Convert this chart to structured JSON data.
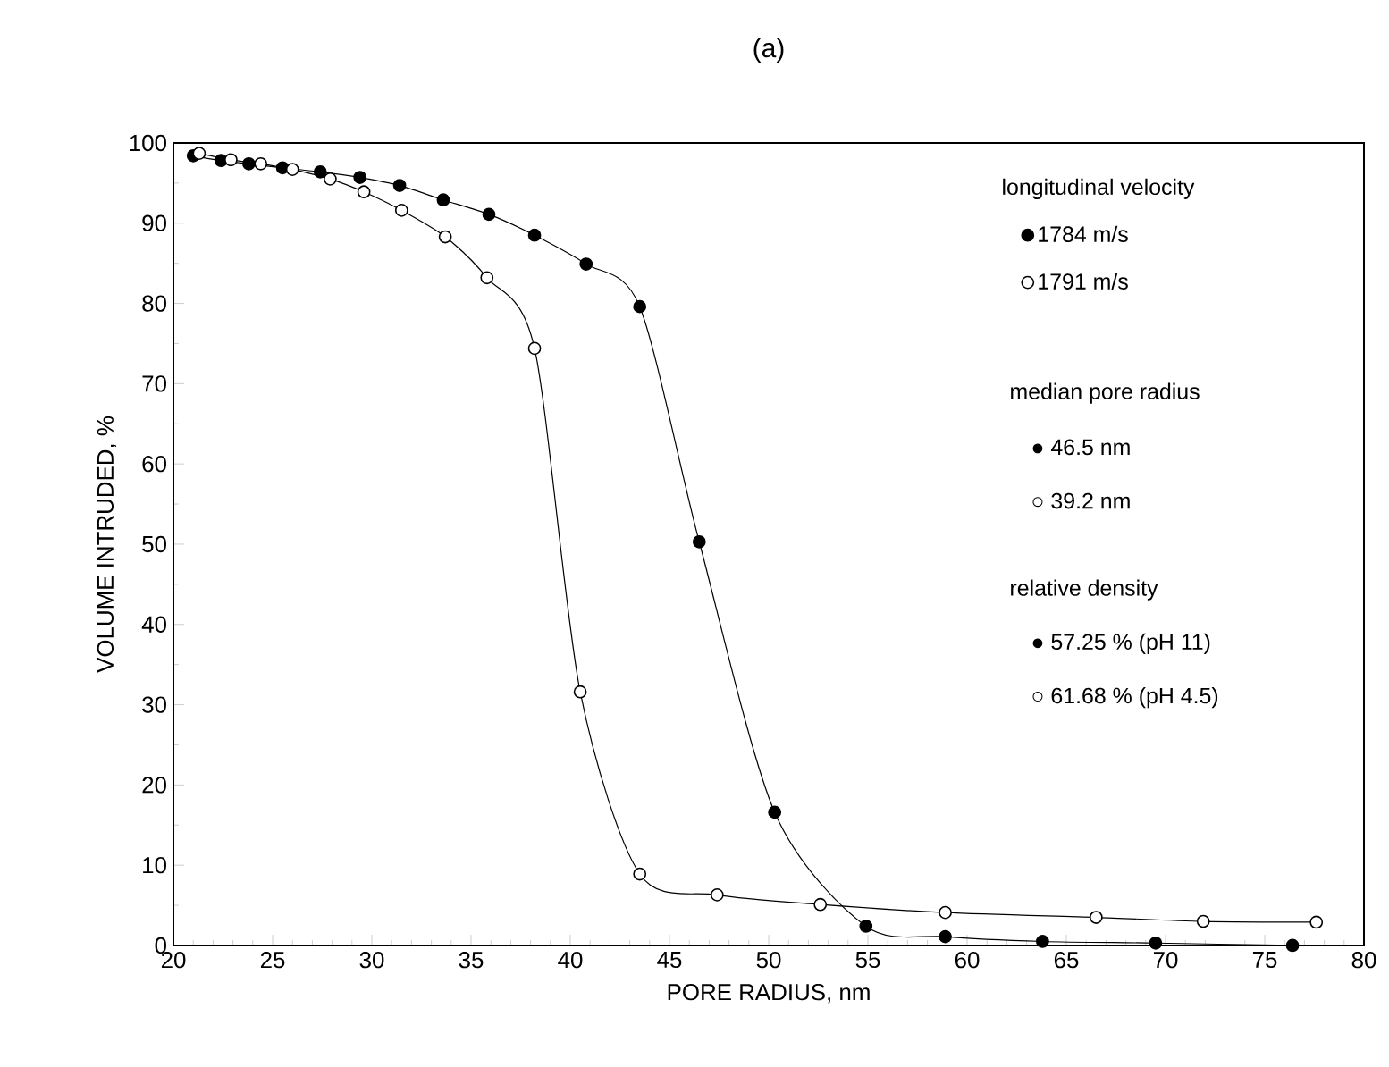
{
  "chart_data": {
    "type": "line",
    "title": "(a)",
    "xlabel": "PORE RADIUS, nm",
    "ylabel": "VOLUME INTRUDED, %",
    "xlim": [
      20,
      80
    ],
    "xticks": [
      20,
      25,
      30,
      35,
      40,
      45,
      50,
      55,
      60,
      65,
      70,
      75,
      80
    ],
    "ylim": [
      0,
      100
    ],
    "yticks": [
      0,
      10,
      20,
      30,
      40,
      50,
      60,
      70,
      80,
      90,
      100
    ],
    "legend": "top right",
    "legend_title": "longitudinal velocity",
    "marker": "circle",
    "line_style": "solid",
    "annotations": [
      "median pore radius",
      "● 46.5 nm",
      "○ 39.2 nm",
      "relative density",
      "● 57.25 % (pH 11)",
      "○ 61.68 % (pH 4.5)"
    ],
    "series": [
      {
        "name": "1784 m/s",
        "color": "#000000",
        "x": [
          21.0,
          22.4,
          23.8,
          25.5,
          27.4,
          29.4,
          31.4,
          33.6,
          35.9,
          38.2,
          40.8,
          43.5,
          46.5,
          50.3,
          54.9,
          58.9,
          63.8,
          69.5,
          76.4
        ],
        "values": [
          98.4,
          97.8,
          97.4,
          96.9,
          96.4,
          95.7,
          94.7,
          92.9,
          91.1,
          88.5,
          84.9,
          79.6,
          50.3,
          16.6,
          2.4,
          1.1,
          0.5,
          0.3,
          0
        ]
      },
      {
        "name": "1791 m/s",
        "color": "#000000",
        "x": [
          21.3,
          22.9,
          24.4,
          26.0,
          27.9,
          29.6,
          31.5,
          33.7,
          35.8,
          38.2,
          40.5,
          43.5,
          47.4,
          52.6,
          58.9,
          66.5,
          71.9,
          77.6
        ],
        "values": [
          98.7,
          97.9,
          97.4,
          96.7,
          95.5,
          93.9,
          91.6,
          88.3,
          83.2,
          74.4,
          31.6,
          8.9,
          6.3,
          5.1,
          4.1,
          3.5,
          3.0,
          2.9
        ]
      }
    ]
  }
}
